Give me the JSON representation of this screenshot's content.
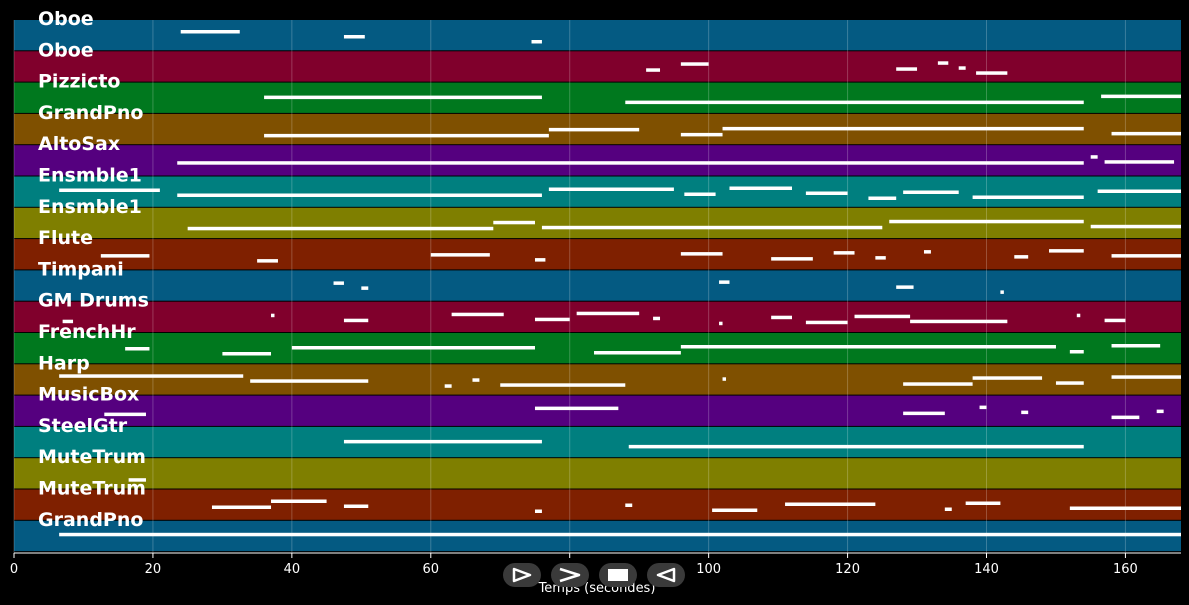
{
  "axis": {
    "xlabel": "Temps (secondes)",
    "xlim": [
      0,
      168
    ],
    "ticks": [
      0,
      20,
      40,
      60,
      80,
      100,
      120,
      140,
      160
    ]
  },
  "tracks": [
    {
      "name": "Oboe",
      "color": "#045a82"
    },
    {
      "name": "Oboe",
      "color": "#80002c"
    },
    {
      "name": "Pizzicto",
      "color": "#00781e"
    },
    {
      "name": "GrandPno",
      "color": "#7f5000"
    },
    {
      "name": "AltoSax",
      "color": "#55007f"
    },
    {
      "name": "Ensmble1",
      "color": "#007f7f"
    },
    {
      "name": "Ensmble1",
      "color": "#7f7f00"
    },
    {
      "name": "Flute",
      "color": "#7f2000"
    },
    {
      "name": "Timpani",
      "color": "#045a82"
    },
    {
      "name": "GM Drums",
      "color": "#80002c"
    },
    {
      "name": "FrenchHr",
      "color": "#00781e"
    },
    {
      "name": "Harp",
      "color": "#7f5000"
    },
    {
      "name": "MusicBox",
      "color": "#55007f"
    },
    {
      "name": "SteelGtr",
      "color": "#007f7f"
    },
    {
      "name": "MuteTrum",
      "color": "#7f7f00"
    },
    {
      "name": "MuteTrum",
      "color": "#7f2000"
    },
    {
      "name": "GrandPno",
      "color": "#045a82"
    }
  ],
  "notes": [
    [
      [
        24,
        32.5
      ],
      [
        47.5,
        50.5
      ],
      [
        74.5,
        76
      ]
    ],
    [
      [
        91,
        93
      ],
      [
        96,
        100
      ],
      [
        127,
        130
      ],
      [
        133,
        134.5
      ],
      [
        136,
        137
      ],
      [
        138.5,
        143
      ]
    ],
    [
      [
        36,
        76
      ],
      [
        88,
        154
      ],
      [
        156.5,
        168
      ]
    ],
    [
      [
        36,
        77
      ],
      [
        77,
        90
      ],
      [
        96,
        102
      ],
      [
        102,
        154
      ],
      [
        158,
        168
      ]
    ],
    [
      [
        23.5,
        154
      ],
      [
        155,
        156
      ],
      [
        157,
        167
      ]
    ],
    [
      [
        6.5,
        21
      ],
      [
        23.5,
        76
      ],
      [
        77,
        95
      ],
      [
        96.5,
        101
      ],
      [
        103,
        112
      ],
      [
        114,
        120
      ],
      [
        123,
        127
      ],
      [
        128,
        136
      ],
      [
        138,
        154
      ],
      [
        156,
        168
      ]
    ],
    [
      [
        25,
        69
      ],
      [
        69,
        75
      ],
      [
        76,
        125
      ],
      [
        126,
        154
      ],
      [
        155,
        168
      ]
    ],
    [
      [
        12.5,
        19.5
      ],
      [
        35,
        38
      ],
      [
        60,
        68.5
      ],
      [
        75,
        76.5
      ],
      [
        96,
        102
      ],
      [
        109,
        115
      ],
      [
        118,
        121
      ],
      [
        124,
        125.5
      ],
      [
        131,
        132
      ],
      [
        144,
        146
      ],
      [
        149,
        154
      ],
      [
        158,
        168
      ]
    ],
    [
      [
        46,
        47.5
      ],
      [
        50,
        51
      ],
      [
        101.5,
        103
      ],
      [
        127,
        129.5
      ],
      [
        142,
        142.5
      ]
    ],
    [
      [
        7,
        8.5
      ],
      [
        37,
        37.5
      ],
      [
        47.5,
        51
      ],
      [
        63,
        70.5
      ],
      [
        75,
        80
      ],
      [
        81,
        90
      ],
      [
        92,
        93
      ],
      [
        101.5,
        102
      ],
      [
        109,
        112
      ],
      [
        114,
        120
      ],
      [
        121,
        129
      ],
      [
        129,
        143
      ],
      [
        153,
        153.5
      ],
      [
        157,
        160
      ]
    ],
    [
      [
        16,
        19.5
      ],
      [
        30,
        37
      ],
      [
        40,
        75
      ],
      [
        83.5,
        96
      ],
      [
        96,
        150
      ],
      [
        152,
        154
      ],
      [
        158,
        165
      ]
    ],
    [
      [
        6.5,
        33
      ],
      [
        34,
        51
      ],
      [
        62,
        63
      ],
      [
        66,
        67
      ],
      [
        70,
        88
      ],
      [
        102,
        102.5
      ],
      [
        128,
        138
      ],
      [
        138,
        148
      ],
      [
        150,
        154
      ],
      [
        158,
        168
      ]
    ],
    [
      [
        13,
        19
      ],
      [
        75,
        87
      ],
      [
        128,
        134
      ],
      [
        139,
        140
      ],
      [
        145,
        146
      ],
      [
        158,
        162
      ],
      [
        164.5,
        165.5
      ]
    ],
    [
      [
        47.5,
        76
      ],
      [
        88.5,
        154
      ]
    ],
    [
      [
        16.5,
        19
      ]
    ],
    [
      [
        28.5,
        37
      ],
      [
        37,
        45
      ],
      [
        47.5,
        51
      ],
      [
        75,
        76
      ],
      [
        88,
        89
      ],
      [
        100.5,
        107
      ],
      [
        111,
        124
      ],
      [
        134,
        135
      ],
      [
        137,
        142
      ],
      [
        152,
        168
      ]
    ],
    [
      [
        6.5,
        168
      ]
    ]
  ],
  "controls": [
    {
      "name": "play-icon"
    },
    {
      "name": "next-icon"
    },
    {
      "name": "stop-icon"
    },
    {
      "name": "rewind-icon"
    }
  ]
}
